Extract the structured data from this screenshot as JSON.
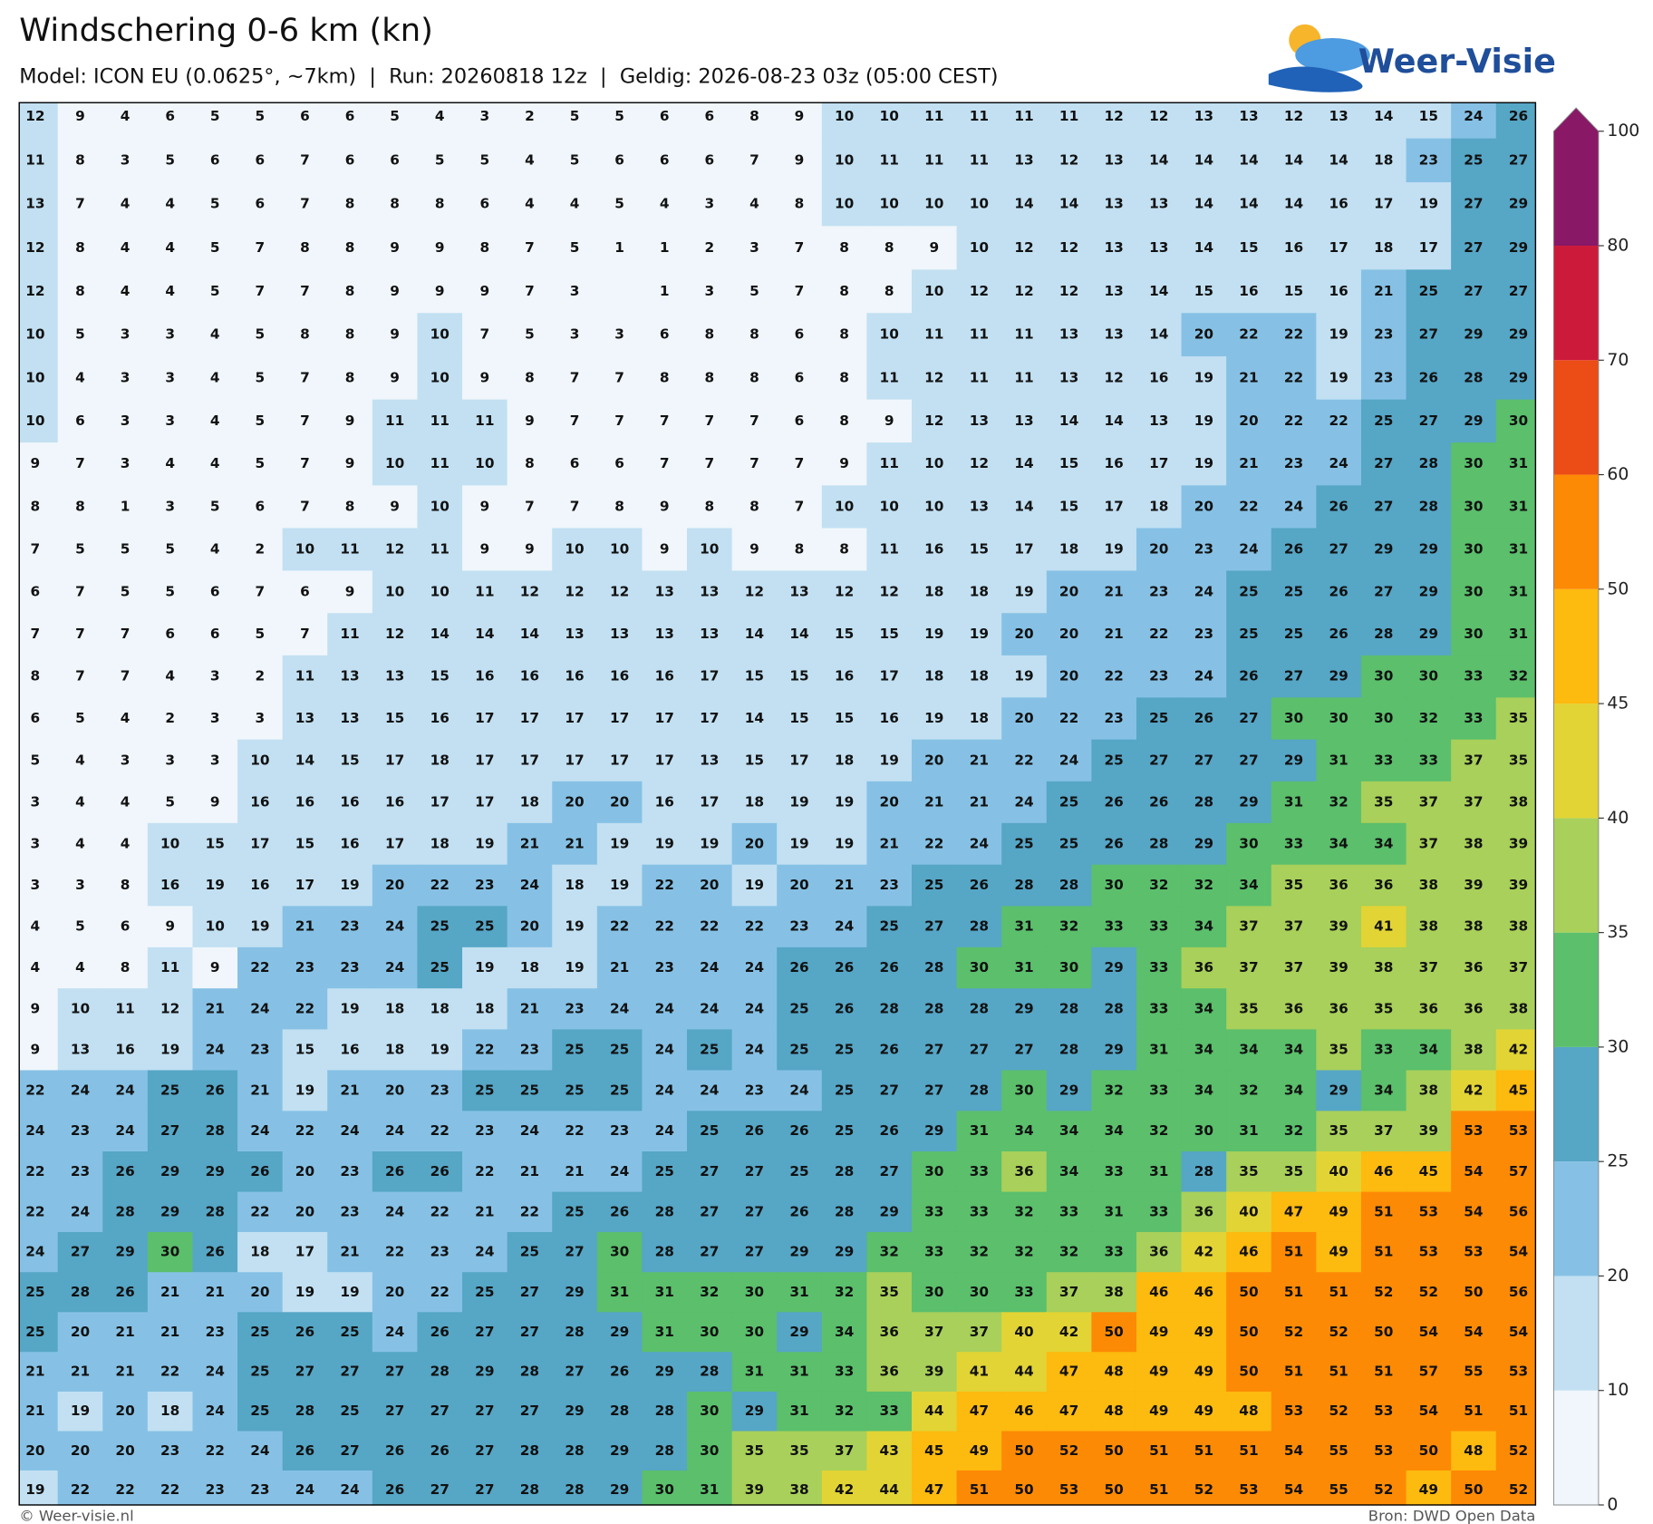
{
  "header": {
    "title": "Windschering 0-6 km (kn)",
    "subtitle": "Model: ICON EU (0.0625°, ~7km)  |  Run: 20260818 12z  |  Geldig: 2026-08-23 03z (05:00 CEST)",
    "logo": "Weer-Visie"
  },
  "map": {
    "values": [
      [
        12,
        9,
        4,
        6,
        5,
        5,
        6,
        6,
        5,
        4,
        3,
        2,
        5,
        5,
        6,
        6,
        8,
        9,
        10,
        10,
        11,
        11,
        11,
        11,
        12,
        12,
        13,
        13,
        12,
        13,
        14,
        15,
        24,
        26
      ],
      [
        11,
        8,
        3,
        5,
        6,
        6,
        7,
        6,
        6,
        5,
        5,
        4,
        5,
        6,
        6,
        6,
        7,
        9,
        10,
        11,
        11,
        11,
        13,
        12,
        13,
        14,
        14,
        14,
        14,
        14,
        18,
        23,
        25,
        27
      ],
      [
        13,
        7,
        4,
        4,
        5,
        6,
        7,
        8,
        8,
        8,
        6,
        4,
        4,
        5,
        4,
        3,
        4,
        8,
        10,
        10,
        10,
        10,
        14,
        14,
        13,
        13,
        14,
        14,
        14,
        16,
        17,
        19,
        27,
        29
      ],
      [
        12,
        8,
        4,
        4,
        5,
        7,
        8,
        8,
        9,
        9,
        8,
        7,
        5,
        1,
        1,
        2,
        3,
        7,
        8,
        8,
        9,
        10,
        12,
        12,
        13,
        13,
        14,
        15,
        16,
        17,
        18,
        17,
        27,
        29
      ],
      [
        12,
        8,
        4,
        4,
        5,
        7,
        7,
        8,
        9,
        9,
        9,
        7,
        3,
        null,
        1,
        3,
        5,
        7,
        8,
        8,
        10,
        12,
        12,
        12,
        13,
        14,
        15,
        16,
        15,
        16,
        21,
        25,
        27,
        27
      ],
      [
        10,
        5,
        3,
        3,
        4,
        5,
        8,
        8,
        9,
        10,
        7,
        5,
        3,
        3,
        6,
        8,
        8,
        6,
        8,
        10,
        11,
        11,
        11,
        13,
        13,
        14,
        20,
        22,
        22,
        19,
        23,
        27,
        29,
        29
      ],
      [
        10,
        4,
        3,
        3,
        4,
        5,
        7,
        8,
        9,
        10,
        9,
        8,
        7,
        7,
        8,
        8,
        8,
        6,
        8,
        11,
        12,
        11,
        11,
        13,
        12,
        16,
        19,
        21,
        22,
        19,
        23,
        26,
        28,
        29
      ],
      [
        10,
        6,
        3,
        3,
        4,
        5,
        7,
        9,
        11,
        11,
        11,
        9,
        7,
        7,
        7,
        7,
        7,
        6,
        8,
        9,
        12,
        13,
        13,
        14,
        14,
        13,
        19,
        20,
        22,
        22,
        25,
        27,
        29,
        30
      ],
      [
        9,
        7,
        3,
        4,
        4,
        5,
        7,
        9,
        10,
        11,
        10,
        8,
        6,
        6,
        7,
        7,
        7,
        7,
        9,
        11,
        10,
        12,
        14,
        15,
        16,
        17,
        19,
        21,
        23,
        24,
        27,
        28,
        30,
        31
      ],
      [
        8,
        8,
        1,
        3,
        5,
        6,
        7,
        8,
        9,
        10,
        9,
        7,
        7,
        8,
        9,
        8,
        8,
        7,
        10,
        10,
        10,
        13,
        14,
        15,
        17,
        18,
        20,
        22,
        24,
        26,
        27,
        28,
        30,
        31
      ],
      [
        7,
        5,
        5,
        5,
        4,
        2,
        10,
        11,
        12,
        11,
        9,
        9,
        10,
        10,
        9,
        10,
        9,
        8,
        8,
        11,
        16,
        15,
        17,
        18,
        19,
        20,
        23,
        24,
        26,
        27,
        29,
        29,
        30,
        31
      ],
      [
        6,
        7,
        5,
        5,
        6,
        7,
        6,
        9,
        10,
        10,
        11,
        12,
        12,
        12,
        13,
        13,
        12,
        13,
        12,
        12,
        18,
        18,
        19,
        20,
        21,
        23,
        24,
        25,
        25,
        26,
        27,
        29,
        30,
        31
      ],
      [
        7,
        7,
        7,
        6,
        6,
        5,
        7,
        11,
        12,
        14,
        14,
        14,
        13,
        13,
        13,
        13,
        14,
        14,
        15,
        15,
        19,
        19,
        20,
        20,
        21,
        22,
        23,
        25,
        25,
        26,
        28,
        29,
        30,
        31
      ],
      [
        8,
        7,
        7,
        4,
        3,
        2,
        11,
        13,
        13,
        15,
        16,
        16,
        16,
        16,
        16,
        17,
        15,
        15,
        16,
        17,
        18,
        18,
        19,
        20,
        22,
        23,
        24,
        26,
        27,
        29,
        30,
        30,
        33,
        32
      ],
      [
        6,
        5,
        4,
        2,
        3,
        3,
        13,
        13,
        15,
        16,
        17,
        17,
        17,
        17,
        17,
        17,
        14,
        15,
        15,
        16,
        19,
        18,
        20,
        22,
        23,
        25,
        26,
        27,
        30,
        30,
        30,
        32,
        33,
        35
      ],
      [
        5,
        4,
        3,
        3,
        3,
        10,
        14,
        15,
        17,
        18,
        17,
        17,
        17,
        17,
        17,
        13,
        15,
        17,
        18,
        19,
        20,
        21,
        22,
        24,
        25,
        27,
        27,
        27,
        29,
        31,
        33,
        33,
        37,
        35
      ],
      [
        3,
        4,
        4,
        5,
        9,
        16,
        16,
        16,
        16,
        17,
        17,
        18,
        20,
        20,
        16,
        17,
        18,
        19,
        19,
        20,
        21,
        21,
        24,
        25,
        26,
        26,
        28,
        29,
        31,
        32,
        35,
        37,
        37,
        38
      ],
      [
        3,
        4,
        4,
        10,
        15,
        17,
        15,
        16,
        17,
        18,
        19,
        21,
        21,
        19,
        19,
        19,
        20,
        19,
        19,
        21,
        22,
        24,
        25,
        25,
        26,
        28,
        29,
        30,
        33,
        34,
        34,
        37,
        38,
        39
      ],
      [
        3,
        3,
        8,
        16,
        19,
        16,
        17,
        19,
        20,
        22,
        23,
        24,
        18,
        19,
        22,
        20,
        19,
        20,
        21,
        23,
        25,
        26,
        28,
        28,
        30,
        32,
        32,
        34,
        35,
        36,
        36,
        38,
        39,
        39
      ],
      [
        4,
        5,
        6,
        9,
        10,
        19,
        21,
        23,
        24,
        25,
        25,
        20,
        19,
        22,
        22,
        22,
        22,
        23,
        24,
        25,
        27,
        28,
        31,
        32,
        33,
        33,
        34,
        37,
        37,
        39,
        41,
        38,
        38,
        38
      ],
      [
        4,
        4,
        8,
        11,
        9,
        22,
        23,
        23,
        24,
        25,
        19,
        18,
        19,
        21,
        23,
        24,
        24,
        26,
        26,
        26,
        28,
        30,
        31,
        30,
        29,
        33,
        36,
        37,
        37,
        39,
        38,
        37,
        36,
        37
      ],
      [
        9,
        10,
        11,
        12,
        21,
        24,
        22,
        19,
        18,
        18,
        18,
        21,
        23,
        24,
        24,
        24,
        24,
        25,
        26,
        28,
        28,
        28,
        29,
        28,
        28,
        33,
        34,
        35,
        36,
        36,
        35,
        36,
        36,
        38
      ],
      [
        9,
        13,
        16,
        19,
        24,
        23,
        15,
        16,
        18,
        19,
        22,
        23,
        25,
        25,
        24,
        25,
        24,
        25,
        25,
        26,
        27,
        27,
        27,
        28,
        29,
        31,
        34,
        34,
        34,
        35,
        33,
        34,
        38,
        42
      ],
      [
        22,
        24,
        24,
        25,
        26,
        21,
        19,
        21,
        20,
        23,
        25,
        25,
        25,
        25,
        24,
        24,
        23,
        24,
        25,
        27,
        27,
        28,
        30,
        29,
        32,
        33,
        34,
        32,
        34,
        29,
        34,
        38,
        42,
        45
      ],
      [
        24,
        23,
        24,
        27,
        28,
        24,
        22,
        24,
        24,
        22,
        23,
        24,
        22,
        23,
        24,
        25,
        26,
        26,
        25,
        26,
        29,
        31,
        34,
        34,
        34,
        32,
        30,
        31,
        32,
        35,
        37,
        39,
        53,
        53
      ],
      [
        22,
        23,
        26,
        29,
        29,
        26,
        20,
        23,
        26,
        26,
        22,
        21,
        21,
        24,
        25,
        27,
        27,
        25,
        28,
        27,
        30,
        33,
        36,
        34,
        33,
        31,
        28,
        35,
        35,
        40,
        46,
        45,
        54,
        57
      ],
      [
        22,
        24,
        28,
        29,
        28,
        22,
        20,
        23,
        24,
        22,
        21,
        22,
        25,
        26,
        28,
        27,
        27,
        26,
        28,
        29,
        33,
        33,
        32,
        33,
        31,
        33,
        36,
        40,
        47,
        49,
        51,
        53,
        54,
        56
      ],
      [
        24,
        27,
        29,
        30,
        26,
        18,
        17,
        21,
        22,
        23,
        24,
        25,
        27,
        30,
        28,
        27,
        27,
        29,
        29,
        32,
        33,
        32,
        32,
        32,
        33,
        36,
        42,
        46,
        51,
        49,
        51,
        53,
        53,
        54
      ],
      [
        25,
        28,
        26,
        21,
        21,
        20,
        19,
        19,
        20,
        22,
        25,
        27,
        29,
        31,
        31,
        32,
        30,
        31,
        32,
        35,
        30,
        30,
        33,
        37,
        38,
        46,
        46,
        50,
        51,
        51,
        52,
        52,
        50,
        56
      ],
      [
        25,
        20,
        21,
        21,
        23,
        25,
        26,
        25,
        24,
        26,
        27,
        27,
        28,
        29,
        31,
        30,
        30,
        29,
        34,
        36,
        37,
        37,
        40,
        42,
        50,
        49,
        49,
        50,
        52,
        52,
        50,
        54,
        54,
        54
      ],
      [
        21,
        21,
        21,
        22,
        24,
        25,
        27,
        27,
        27,
        28,
        29,
        28,
        27,
        26,
        29,
        28,
        31,
        31,
        33,
        36,
        39,
        41,
        44,
        47,
        48,
        49,
        49,
        50,
        51,
        51,
        51,
        57,
        55,
        53
      ],
      [
        21,
        19,
        20,
        18,
        24,
        25,
        28,
        25,
        27,
        27,
        27,
        27,
        29,
        28,
        28,
        30,
        29,
        31,
        32,
        33,
        44,
        47,
        46,
        47,
        48,
        49,
        49,
        48,
        53,
        52,
        53,
        54,
        51,
        51
      ],
      [
        20,
        20,
        20,
        23,
        22,
        24,
        26,
        27,
        26,
        26,
        27,
        28,
        28,
        29,
        28,
        30,
        35,
        35,
        37,
        43,
        45,
        49,
        50,
        52,
        50,
        51,
        51,
        51,
        54,
        55,
        53,
        50,
        48,
        52
      ],
      [
        19,
        22,
        22,
        22,
        23,
        23,
        24,
        24,
        26,
        27,
        27,
        28,
        28,
        29,
        30,
        31,
        39,
        38,
        42,
        44,
        47,
        51,
        50,
        53,
        50,
        51,
        52,
        53,
        54,
        55,
        52,
        49,
        50,
        52
      ]
    ]
  },
  "colorbar": {
    "levels": [
      0,
      10,
      20,
      25,
      30,
      35,
      40,
      45,
      50,
      60,
      70,
      80,
      100
    ],
    "colors": [
      "#f0f6fb",
      "#c2e0f2",
      "#86c1e5",
      "#56a6c6",
      "#5bbf6c",
      "#a8d05a",
      "#e2d435",
      "#fdba0f",
      "#fd8a05",
      "#ec4c15",
      "#cc1a3a",
      "#891867"
    ]
  },
  "footer": {
    "left": "© Weer-visie.nl",
    "right": "Bron: DWD Open Data"
  }
}
